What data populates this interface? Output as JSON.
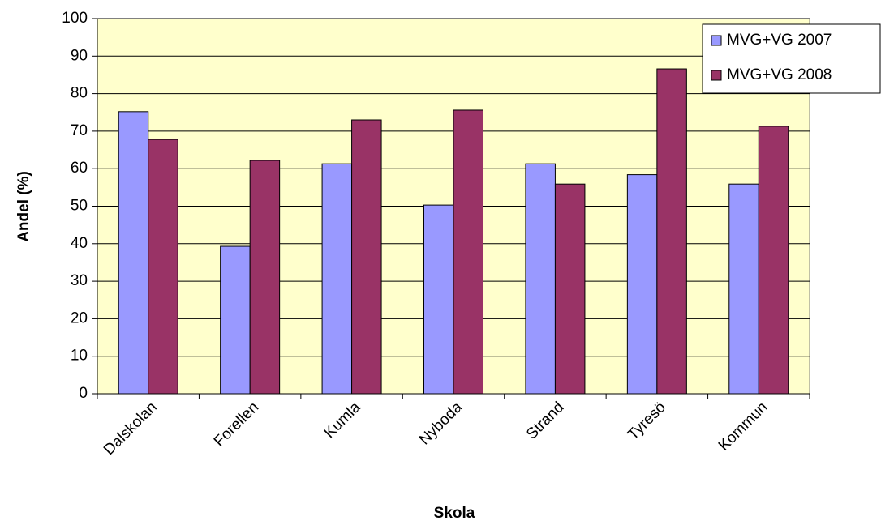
{
  "chart_data": {
    "type": "bar",
    "x_label": "Skola",
    "y_label": "Andel (%)",
    "categories": [
      "Dalskolan",
      "Forellen",
      "Kumla",
      "Nyboda",
      "Strand",
      "Tyresö",
      "Kommun"
    ],
    "series": [
      {
        "name": "MVG+VG 2007",
        "color": "#9999ff",
        "values": [
          75.2,
          39.3,
          61.3,
          50.3,
          61.3,
          58.4,
          55.9
        ]
      },
      {
        "name": "MVG+VG 2008",
        "color": "#993366",
        "values": [
          67.8,
          62.2,
          73,
          75.6,
          55.9,
          86.6,
          71.3
        ]
      }
    ],
    "ylim": [
      0,
      100
    ],
    "yticks": [
      0,
      10,
      20,
      30,
      40,
      50,
      60,
      70,
      80,
      90,
      100
    ],
    "grid": true,
    "legend": "upper right",
    "background": "#ffffcc"
  }
}
